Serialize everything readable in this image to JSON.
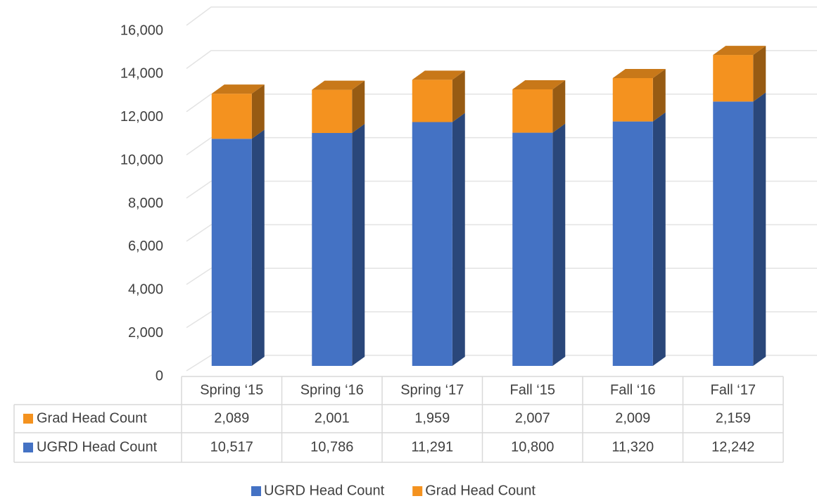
{
  "chart_data": {
    "type": "bar",
    "stacked": true,
    "grid": true,
    "legend": "bottom",
    "categories": [
      "Spring ‘15",
      "Spring ‘16",
      "Spring ‘17",
      "Fall ‘15",
      "Fall ‘16",
      "Fall ‘17"
    ],
    "series": [
      {
        "name": "UGRD Head Count",
        "color": "#4472c4",
        "values": [
          10517,
          10786,
          11291,
          10800,
          11320,
          12242
        ],
        "value_labels": [
          "10,517",
          "10,786",
          "11,291",
          "10,800",
          "11,320",
          "12,242"
        ]
      },
      {
        "name": "Grad Head Count",
        "color": "#f4921f",
        "values": [
          2089,
          2001,
          1959,
          2007,
          2009,
          2159
        ],
        "value_labels": [
          "2,089",
          "2,001",
          "1,959",
          "2,007",
          "2,009",
          "2,159"
        ]
      }
    ],
    "ylim": [
      0,
      16000
    ],
    "yticks": [
      0,
      {
        "value": 2000,
        "label": "2,000"
      },
      {
        "value": 4000,
        "label": "4,000"
      },
      {
        "value": 6000,
        "label": "6,000"
      },
      {
        "value": 8000,
        "label": "8,000"
      },
      {
        "value": 10000,
        "label": "10,000"
      },
      {
        "value": 12000,
        "label": "12,000"
      },
      {
        "value": 14000,
        "label": "14,000"
      },
      {
        "value": 16000,
        "label": "16,000"
      }
    ]
  }
}
